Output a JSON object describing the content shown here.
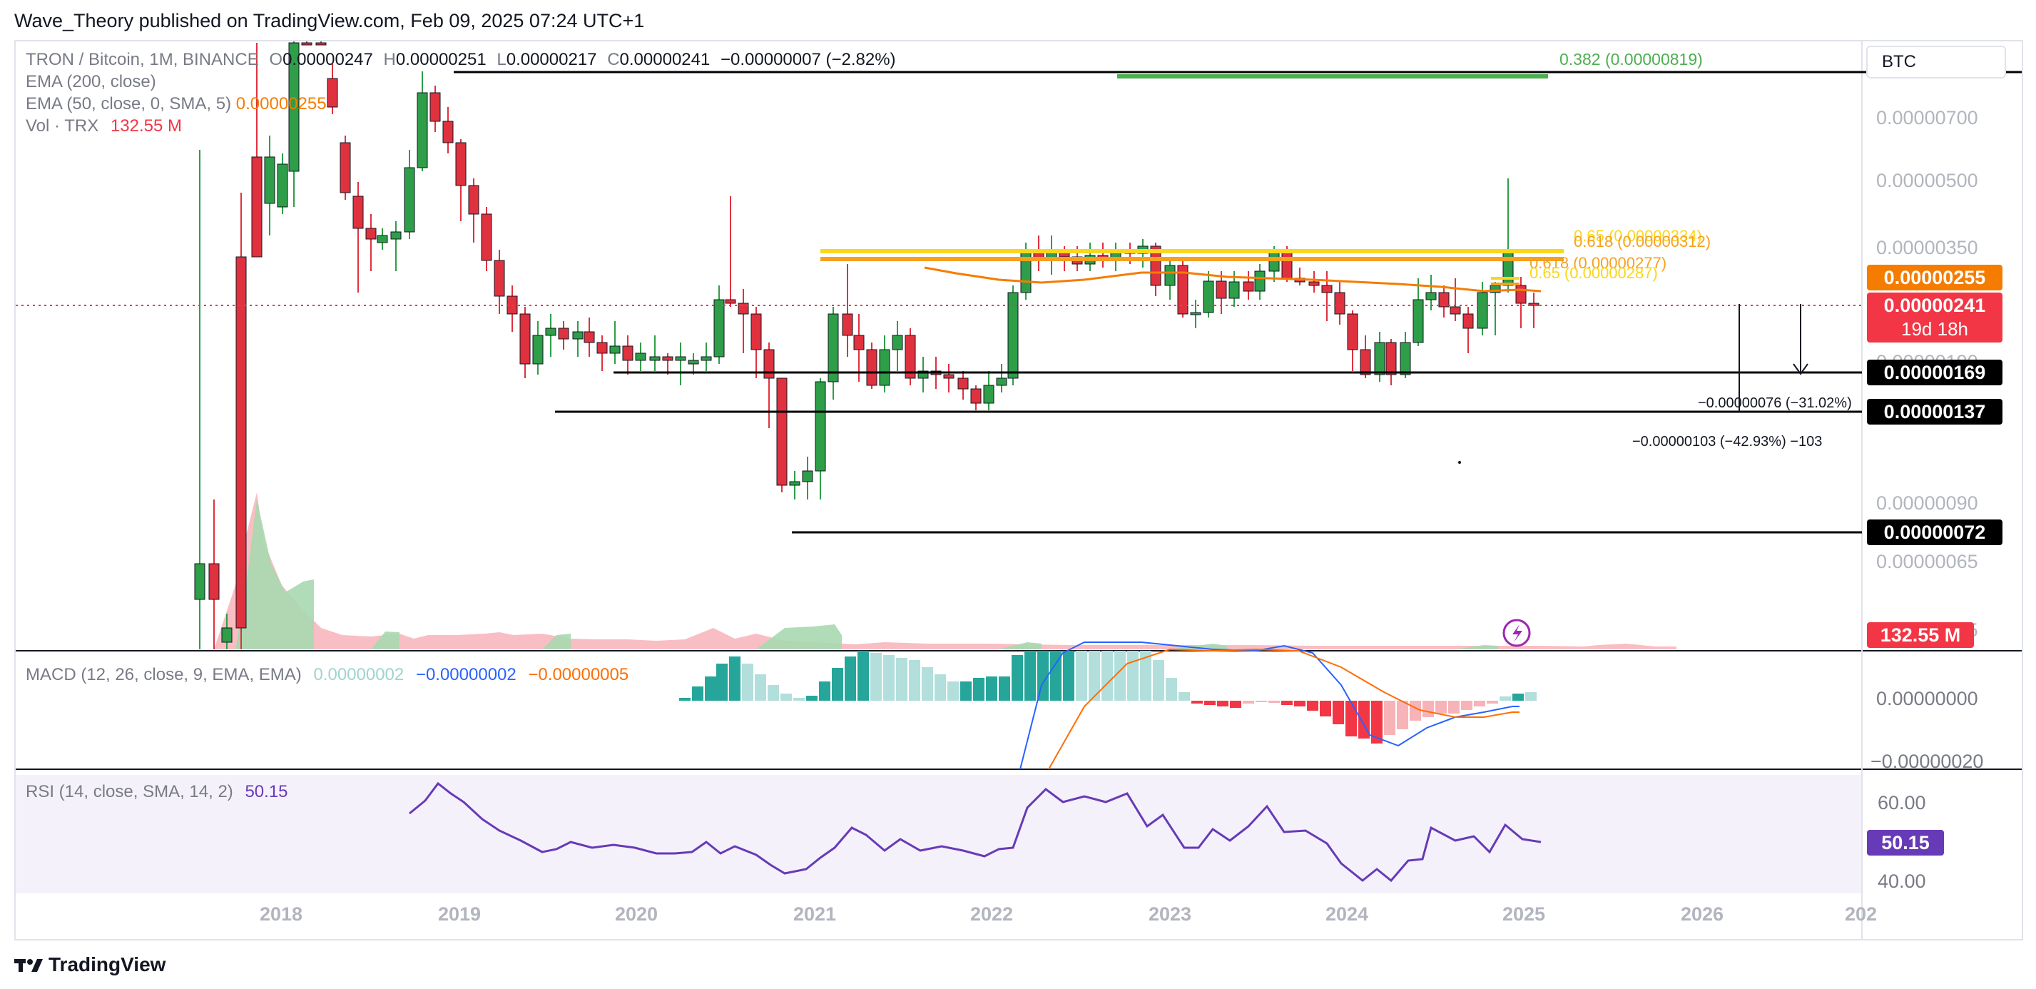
{
  "header": {
    "publisher_line": "Wave_Theory published on TradingView.com, Feb 09, 2025 07:24 UTC+1"
  },
  "legend": {
    "symbol": "TRON / Bitcoin, 1M, BINANCE",
    "open_label": "O",
    "open": "0.00000247",
    "high_label": "H",
    "high": "0.00000251",
    "low_label": "L",
    "low": "0.00000217",
    "close_label": "C",
    "close": "0.00000241",
    "change": "−0.00000007 (−2.82%)",
    "ema200": "EMA (200, close)",
    "ema50": "EMA (50, close, 0, SMA, 5)",
    "ema50_value": "0.00000255",
    "vol": "Vol · TRX",
    "vol_value": "132.55 M"
  },
  "macd": {
    "label": "MACD (12, 26, close, 9, EMA, EMA)",
    "hist": "0.00000002",
    "macd": "−0.00000002",
    "signal": "−0.00000005",
    "axis_labels": [
      "0.00000000",
      "−0.00000020"
    ]
  },
  "rsi": {
    "label": "RSI (14, close, SMA, 14, 2)",
    "value": "50.15",
    "axis_labels": [
      "60.00",
      "40.00"
    ]
  },
  "price_scale": {
    "currency": "BTC",
    "labels": [
      "0.00000700",
      "0.00000500",
      "0.00000350",
      "0.00000190",
      "0.00000090",
      "0.00000065",
      "0.00000045"
    ]
  },
  "price_tags": {
    "ema50": "0.00000255",
    "last_price": "0.00000241",
    "countdown": "19d 18h",
    "level_169": "0.00000169",
    "level_137": "0.00000137",
    "level_072": "0.00000072",
    "volume": "132.55 M",
    "rsi": "50.15"
  },
  "fib": {
    "f0382": "0.382 (0.00000819)",
    "f0618_top": "0.618 (0.00000312)",
    "f065_top": "0.65 (0.00000334)",
    "f0618_low": "0.618 (0.00000277)",
    "f065_low": "0.65 (0.00000287)"
  },
  "measures": {
    "m1": "−0.00000076 (−31.02%)",
    "m2": "−0.00000103 (−42.93%) −103"
  },
  "x_axis": [
    "2018",
    "2019",
    "2020",
    "2021",
    "2022",
    "2023",
    "2024",
    "2025",
    "2026",
    "202"
  ],
  "footer": {
    "brand": "TradingView"
  },
  "colors": {
    "up": "#2e9e48",
    "down": "#e0313f",
    "ema50": "#f57c00",
    "fib_yellow": "#f9d71c",
    "fib_orange": "#f7a01e",
    "fib_green": "#4caf50",
    "rsi": "#673ab7",
    "macd_line": "#2962ff",
    "signal_line": "#ff6d00"
  }
}
